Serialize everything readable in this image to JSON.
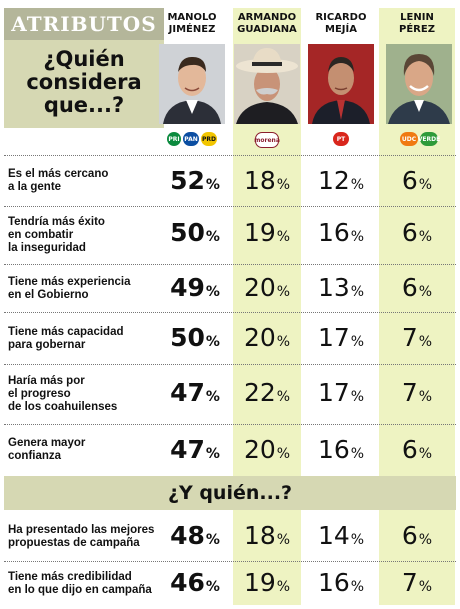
{
  "header": {
    "attributes": "ATRIBUTOS",
    "question_line1": "¿Quién",
    "question_line2": "considera",
    "question_line3": "que...?"
  },
  "section_heading": "¿Y quién...?",
  "symbols": {
    "pct": "%"
  },
  "colors": {
    "highlight_column": "#eef3c2",
    "header_box": "#d6d8b3",
    "attributes_label_bg": "#b4b69a"
  },
  "candidates": [
    {
      "first": "MANOLO",
      "last": "JIMÉNEZ",
      "parties": [
        "PRI",
        "PAN",
        "PRD"
      ]
    },
    {
      "first": "ARMANDO",
      "last": "GUADIANA",
      "parties": [
        "morena"
      ]
    },
    {
      "first": "RICARDO",
      "last": "MEJÍA",
      "parties": [
        "PT"
      ]
    },
    {
      "first": "LENIN",
      "last": "PÉREZ",
      "parties": [
        "UDC",
        "VERDE"
      ]
    }
  ],
  "rows": [
    {
      "label_line1": "Es el más cercano",
      "label_line2": "a la gente",
      "values": [
        52,
        18,
        12,
        6
      ]
    },
    {
      "label_line1": "Tendría más éxito",
      "label_line2": "en combatir",
      "label_line3": "la inseguridad",
      "values": [
        50,
        19,
        16,
        6
      ]
    },
    {
      "label_line1": "Tiene más experiencia",
      "label_line2": "en el Gobierno",
      "values": [
        49,
        20,
        13,
        6
      ]
    },
    {
      "label_line1": "Tiene más capacidad",
      "label_line2": "para gobernar",
      "values": [
        50,
        20,
        17,
        7
      ]
    },
    {
      "label_line1": "Haría más por",
      "label_line2": "el progreso",
      "label_line3": "de los coahuilenses",
      "values": [
        47,
        22,
        17,
        7
      ]
    },
    {
      "label_line1": "Genera mayor",
      "label_line2": "confianza",
      "values": [
        47,
        20,
        16,
        6
      ]
    },
    {
      "label_line1": "Ha presentado las mejores",
      "label_line2": "propuestas de campaña",
      "values": [
        48,
        18,
        14,
        6
      ]
    },
    {
      "label_line1": "Tiene más credibilidad",
      "label_line2": "en lo que dijo en campaña",
      "values": [
        46,
        19,
        16,
        7
      ]
    }
  ]
}
